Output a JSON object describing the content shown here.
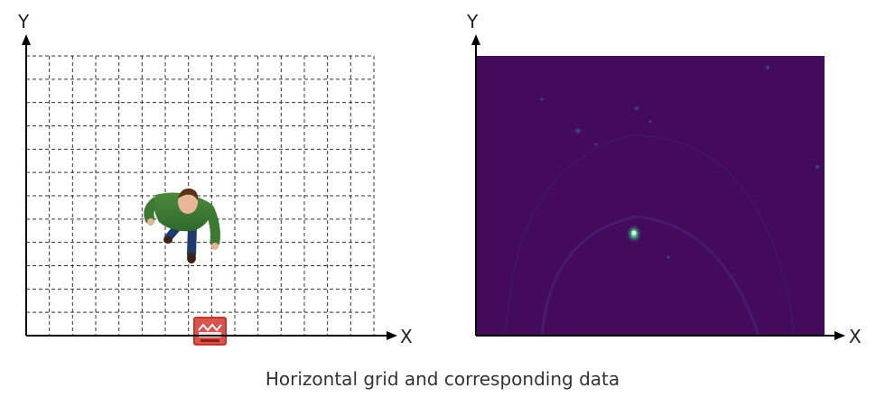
{
  "left_panel": {
    "y_axis_label": "Y",
    "x_axis_label": "X",
    "grid": {
      "columns": 15,
      "rows": 12,
      "style": "dashed"
    },
    "person_icon": "person-walking-top-view-icon",
    "sensor_icon": "radar-sensor-icon"
  },
  "right_panel": {
    "y_axis_label": "Y",
    "x_axis_label": "X",
    "heatmap_icon": "radar-heatmap-icon",
    "colors": {
      "background": "#440a5c",
      "hotspot": "#6fe3a0"
    }
  },
  "caption": "Horizontal grid and corresponding data",
  "colors": {
    "axis": "#000000",
    "grid": "#333333",
    "person_shirt": "#3c7a32",
    "sensor": "#c0392b"
  }
}
